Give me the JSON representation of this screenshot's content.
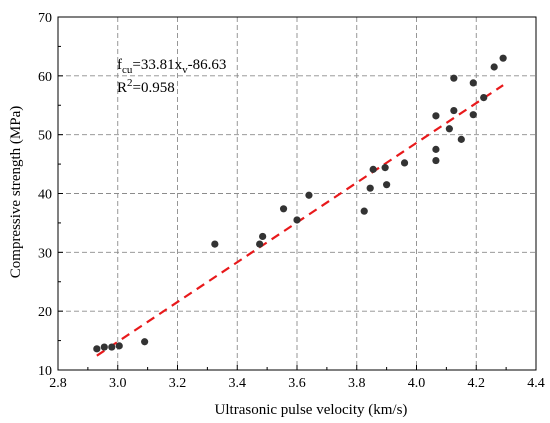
{
  "chart_data": {
    "type": "scatter",
    "xlabel": "Ultrasonic pulse velocity (km/s)",
    "ylabel": "Compressive strength (MPa)",
    "xlim": [
      2.8,
      4.4
    ],
    "ylim": [
      10,
      70
    ],
    "xticks": [
      "2.8",
      "3.0",
      "3.2",
      "3.4",
      "3.6",
      "3.8",
      "4.0",
      "4.2",
      "4.4"
    ],
    "yticks": [
      "10",
      "20",
      "30",
      "40",
      "50",
      "60",
      "70"
    ],
    "grid": true,
    "grid_style": "dashed",
    "colors": {
      "points": "#333333",
      "fit": "#e8191b",
      "grid": "#8c8c8c"
    },
    "points": [
      {
        "x": 2.93,
        "y": 13.6
      },
      {
        "x": 2.955,
        "y": 13.9
      },
      {
        "x": 2.98,
        "y": 13.9
      },
      {
        "x": 3.005,
        "y": 14.1
      },
      {
        "x": 3.09,
        "y": 14.8
      },
      {
        "x": 3.325,
        "y": 31.4
      },
      {
        "x": 3.475,
        "y": 31.4
      },
      {
        "x": 3.485,
        "y": 32.7
      },
      {
        "x": 3.555,
        "y": 37.4
      },
      {
        "x": 3.6,
        "y": 35.5
      },
      {
        "x": 3.64,
        "y": 39.7
      },
      {
        "x": 3.825,
        "y": 37.0
      },
      {
        "x": 3.845,
        "y": 40.9
      },
      {
        "x": 3.855,
        "y": 44.1
      },
      {
        "x": 3.895,
        "y": 44.4
      },
      {
        "x": 3.9,
        "y": 41.5
      },
      {
        "x": 3.96,
        "y": 45.2
      },
      {
        "x": 4.065,
        "y": 53.2
      },
      {
        "x": 4.065,
        "y": 47.5
      },
      {
        "x": 4.065,
        "y": 45.6
      },
      {
        "x": 4.11,
        "y": 51.0
      },
      {
        "x": 4.125,
        "y": 54.1
      },
      {
        "x": 4.125,
        "y": 59.6
      },
      {
        "x": 4.15,
        "y": 49.2
      },
      {
        "x": 4.19,
        "y": 58.8
      },
      {
        "x": 4.19,
        "y": 53.4
      },
      {
        "x": 4.225,
        "y": 56.3
      },
      {
        "x": 4.26,
        "y": 61.5
      },
      {
        "x": 4.29,
        "y": 63.0
      }
    ],
    "fit": {
      "slope": 33.81,
      "intercept": -86.63,
      "x_range": [
        2.93,
        4.29
      ],
      "equation_text": {
        "lhs_main": "f",
        "lhs_sub": "cu",
        "mid": "=33.81x",
        "x_sub": "v",
        "rhs": "-86.63"
      },
      "r2_text": {
        "main": "R",
        "sup": "2",
        "rest": "=0.958"
      }
    }
  }
}
